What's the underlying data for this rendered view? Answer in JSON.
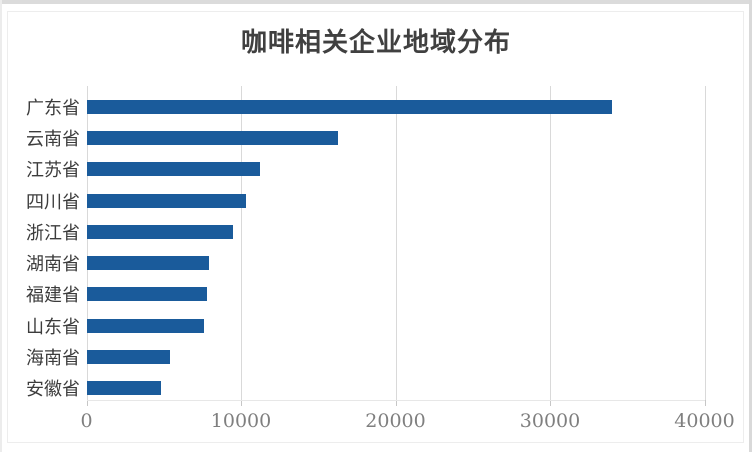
{
  "window": {
    "top_edge_color": "#dbdbdb",
    "right_edge_color": "#d9d9d9",
    "chart_border_color": "#ededed"
  },
  "chart_data": {
    "type": "bar",
    "orientation": "horizontal",
    "title": "咖啡相关企业地域分布",
    "categories": [
      "广东省",
      "云南省",
      "江苏省",
      "四川省",
      "浙江省",
      "湖南省",
      "福建省",
      "山东省",
      "海南省",
      "安徽省"
    ],
    "values": [
      34000,
      16300,
      11200,
      10300,
      9500,
      7900,
      7800,
      7600,
      5400,
      4800
    ],
    "xlim": [
      0,
      40000
    ],
    "x_ticks": [
      0,
      10000,
      20000,
      30000,
      40000
    ],
    "x_tick_labels": [
      "0",
      "10000",
      "20000",
      "30000",
      "40000"
    ],
    "grid": "vertical-only",
    "legend": "none",
    "bar_color": "#1a5b9b",
    "gridline_color": "#d9d9d9",
    "title_color": "#404040",
    "tick_label_color": "#7f7f7f",
    "category_label_color": "#3c3c3c"
  }
}
